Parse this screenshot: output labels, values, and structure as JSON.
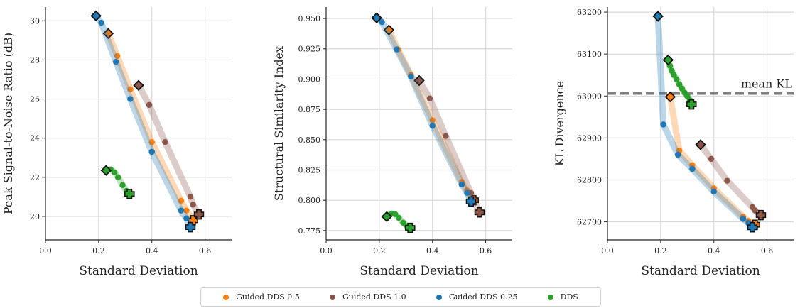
{
  "chart_data": [
    {
      "type": "scatter",
      "xlabel": "Standard Deviation",
      "ylabel": "Peak Signal-to-Noise Ratio (dB)",
      "xlim": [
        0,
        0.7
      ],
      "ylim": [
        18.8,
        30.7
      ],
      "xticks": [
        0.0,
        0.2,
        0.4,
        0.6
      ],
      "xtick_labels": [
        "0.0",
        "0.2",
        "0.4",
        "0.6"
      ],
      "yticks": [
        20,
        22,
        24,
        26,
        28,
        30
      ],
      "ytick_labels": [
        "20",
        "22",
        "24",
        "26",
        "28",
        "30"
      ],
      "grid": true,
      "series": [
        {
          "name": "Guided DDS 0.5",
          "x": [
            0.236,
            0.27,
            0.319,
            0.4,
            0.51,
            0.53,
            0.555
          ],
          "y": [
            29.35,
            28.2,
            26.5,
            23.8,
            20.8,
            20.3,
            19.8
          ]
        },
        {
          "name": "Guided DDS 1.0",
          "x": [
            0.35,
            0.39,
            0.45,
            0.545,
            0.555,
            0.577
          ],
          "y": [
            26.7,
            25.7,
            23.8,
            21.0,
            20.6,
            20.1
          ]
        },
        {
          "name": "Guided DDS 0.25",
          "x": [
            0.19,
            0.21,
            0.265,
            0.319,
            0.4,
            0.51,
            0.53,
            0.545
          ],
          "y": [
            30.25,
            29.9,
            27.9,
            26.0,
            23.3,
            20.3,
            19.9,
            19.45
          ]
        },
        {
          "name": "DDS",
          "x": [
            0.228,
            0.245,
            0.26,
            0.273,
            0.29,
            0.305,
            0.316
          ],
          "y": [
            22.35,
            22.4,
            22.25,
            22.0,
            21.6,
            21.3,
            21.15
          ]
        }
      ]
    },
    {
      "type": "scatter",
      "xlabel": "Standard Deviation",
      "ylabel": "Structural Similarity Index",
      "xlim": [
        0,
        0.7
      ],
      "ylim": [
        0.7673,
        0.9594
      ],
      "xticks": [
        0.0,
        0.2,
        0.4,
        0.6
      ],
      "xtick_labels": [
        "0.0",
        "0.2",
        "0.4",
        "0.6"
      ],
      "yticks": [
        0.775,
        0.8,
        0.825,
        0.85,
        0.875,
        0.9,
        0.925,
        0.95
      ],
      "ytick_labels": [
        "0.775",
        "0.800",
        "0.825",
        "0.850",
        "0.875",
        "0.900",
        "0.925",
        "0.950"
      ],
      "grid": true,
      "series": [
        {
          "name": "Guided DDS 0.5",
          "x": [
            0.236,
            0.27,
            0.319,
            0.4,
            0.51,
            0.53,
            0.555
          ],
          "y": [
            0.9405,
            0.9245,
            0.9035,
            0.866,
            0.815,
            0.808,
            0.8
          ],
          "note": ""
        },
        {
          "name": "Guided DDS 1.0",
          "x": [
            0.35,
            0.39,
            0.45,
            0.545,
            0.555,
            0.577
          ],
          "y": [
            0.8988,
            0.884,
            0.853,
            0.806,
            0.8,
            0.79
          ]
        },
        {
          "name": "Guided DDS 0.25",
          "x": [
            0.19,
            0.21,
            0.265,
            0.319,
            0.4,
            0.51,
            0.53,
            0.545
          ],
          "y": [
            0.9505,
            0.947,
            0.9245,
            0.902,
            0.8615,
            0.813,
            0.806,
            0.799
          ]
        },
        {
          "name": "DDS",
          "x": [
            0.228,
            0.245,
            0.26,
            0.273,
            0.29,
            0.305,
            0.316
          ],
          "y": [
            0.7865,
            0.789,
            0.7885,
            0.7855,
            0.7815,
            0.7785,
            0.7772
          ]
        }
      ]
    },
    {
      "type": "scatter",
      "xlabel": "Standard Deviation",
      "ylabel": "KL Divergence",
      "xlim": [
        0,
        0.7
      ],
      "ylim": [
        62657,
        63212
      ],
      "xticks": [
        0.0,
        0.2,
        0.4,
        0.6
      ],
      "xtick_labels": [
        "0.0",
        "0.2",
        "0.4",
        "0.6"
      ],
      "yticks": [
        62700,
        62800,
        62900,
        63000,
        63100,
        63200
      ],
      "ytick_labels": [
        "62700",
        "62800",
        "62900",
        "63000",
        "63100",
        "63200"
      ],
      "grid": true,
      "reference_line": {
        "y": 63006,
        "label": "mean KL"
      },
      "series": [
        {
          "name": "Guided DDS 0.5",
          "x": [
            0.236,
            0.27,
            0.319,
            0.4,
            0.51,
            0.53,
            0.555
          ],
          "y": [
            62998,
            62870,
            62835,
            62780,
            62712,
            62702,
            62693
          ]
        },
        {
          "name": "Guided DDS 1.0",
          "x": [
            0.35,
            0.39,
            0.45,
            0.545,
            0.555,
            0.577
          ],
          "y": [
            62884,
            62850,
            62798,
            62735,
            62727,
            62716
          ]
        },
        {
          "name": "Guided DDS 0.25",
          "x": [
            0.19,
            0.21,
            0.265,
            0.319,
            0.4,
            0.51,
            0.53,
            0.545
          ],
          "y": [
            63190,
            62932,
            62860,
            62826,
            62772,
            62707,
            62697,
            62687
          ]
        },
        {
          "name": "DDS",
          "x": [
            0.228,
            0.235,
            0.242,
            0.25,
            0.26,
            0.27,
            0.28,
            0.29,
            0.3,
            0.31,
            0.316
          ],
          "y": [
            63086,
            63072,
            63060,
            63050,
            63040,
            63028,
            63018,
            63008,
            63000,
            62990,
            62980
          ]
        }
      ]
    }
  ],
  "legend": {
    "placement": "bottom-center",
    "entries": [
      {
        "label": "Guided DDS 0.5",
        "color": "#ff7f0e"
      },
      {
        "label": "Guided DDS 1.0",
        "color": "#8c564b"
      },
      {
        "label": "Guided DDS 0.25",
        "color": "#1f77b4"
      },
      {
        "label": "DDS",
        "color": "#2ca02c"
      }
    ]
  },
  "colors": {
    "Guided DDS 0.5": "#ff7f0e",
    "Guided DDS 1.0": "#8c564b",
    "Guided DDS 0.25": "#1f77b4",
    "DDS": "#2ca02c",
    "reference_line": "#7f7f7f"
  }
}
